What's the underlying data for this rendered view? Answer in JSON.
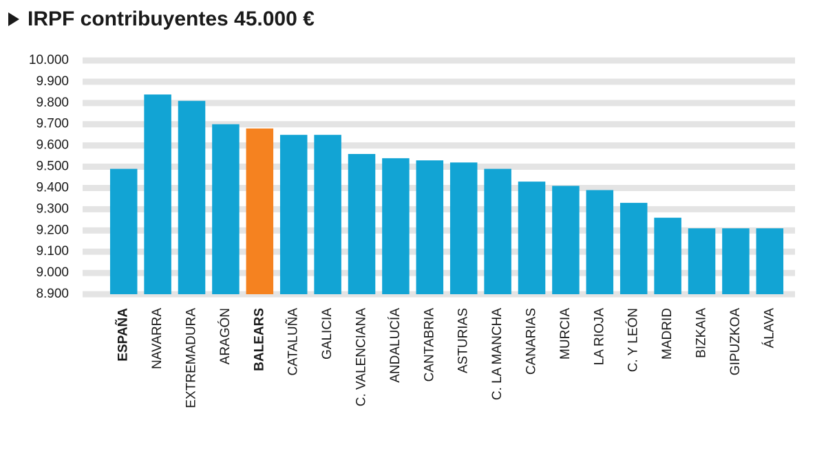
{
  "chart_data": {
    "type": "bar",
    "title": "IRPF contribuyentes 45.000 €",
    "categories": [
      "ESPAÑA",
      "NAVARRA",
      "EXTREMADURA",
      "ARAGÓN",
      "BALEARS",
      "CATALUÑA",
      "GALICIA",
      "C. VALENCIANA",
      "ANDALUCÍA",
      "CANTABRIA",
      "ASTURIAS",
      "C. LA MANCHA",
      "CANARIAS",
      "MURCIA",
      "LA RIOJA",
      "C. Y LEÓN",
      "MADRID",
      "BIZKAIA",
      "GIPUZKOA",
      "ÁLAVA"
    ],
    "values": [
      9490,
      9840,
      9810,
      9700,
      9680,
      9650,
      9650,
      9560,
      9540,
      9530,
      9520,
      9490,
      9430,
      9410,
      9390,
      9330,
      9260,
      9210,
      9210,
      9210
    ],
    "colors": [
      "#12a4d4",
      "#12a4d4",
      "#12a4d4",
      "#12a4d4",
      "#f58220",
      "#12a4d4",
      "#12a4d4",
      "#12a4d4",
      "#12a4d4",
      "#12a4d4",
      "#12a4d4",
      "#12a4d4",
      "#12a4d4",
      "#12a4d4",
      "#12a4d4",
      "#12a4d4",
      "#12a4d4",
      "#12a4d4",
      "#12a4d4",
      "#12a4d4"
    ],
    "bold_indices": [
      0,
      4
    ],
    "ylim": [
      8900,
      10000
    ],
    "yticks": [
      {
        "value": 8900,
        "label": "8.900"
      },
      {
        "value": 9000,
        "label": "9.000"
      },
      {
        "value": 9100,
        "label": "9.100"
      },
      {
        "value": 9200,
        "label": "9.200"
      },
      {
        "value": 9300,
        "label": "9.300"
      },
      {
        "value": 9400,
        "label": "9.400"
      },
      {
        "value": 9500,
        "label": "9.500"
      },
      {
        "value": 9600,
        "label": "9.600"
      },
      {
        "value": 9700,
        "label": "9.700"
      },
      {
        "value": 9800,
        "label": "9.800"
      },
      {
        "value": 9900,
        "label": "9.900"
      },
      {
        "value": 10000,
        "label": "10.000"
      }
    ],
    "grid": true
  }
}
